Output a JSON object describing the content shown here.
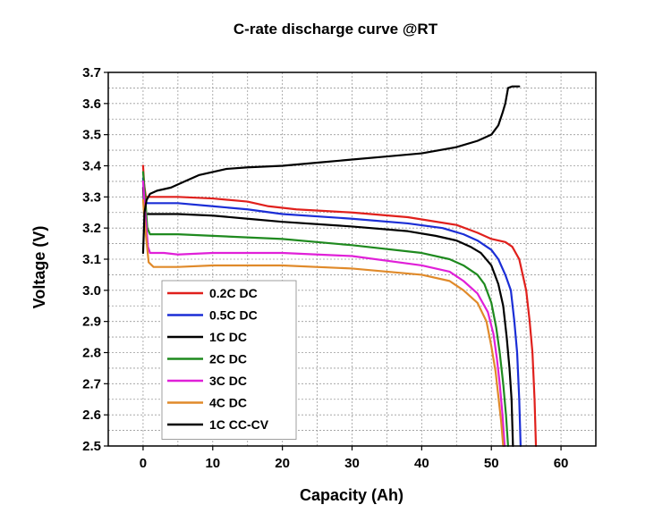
{
  "chart_data": {
    "type": "line",
    "title": "C-rate discharge curve @RT",
    "xlabel": "Capacity (Ah)",
    "ylabel": "Voltage (V)",
    "xlim": [
      -5,
      65
    ],
    "ylim": [
      2.5,
      3.7
    ],
    "xticks": [
      0,
      10,
      20,
      30,
      40,
      50,
      60
    ],
    "yticks": [
      2.5,
      2.6,
      2.7,
      2.8,
      2.9,
      3.0,
      3.1,
      3.2,
      3.3,
      3.4,
      3.5,
      3.6,
      3.7
    ],
    "x_tick_labels": [
      "0",
      "10",
      "20",
      "30",
      "40",
      "50",
      "60"
    ],
    "y_tick_labels": [
      "2.5",
      "2.6",
      "2.7",
      "2.8",
      "2.9",
      "3.0",
      "3.1",
      "3.2",
      "3.3",
      "3.4",
      "3.5",
      "3.6",
      "3.7"
    ],
    "grid": true,
    "legend_position": "bottom-left",
    "series": [
      {
        "name": "0.2C DC",
        "color": "#e0201c",
        "points": [
          [
            0,
            3.4
          ],
          [
            0.15,
            3.34
          ],
          [
            0.4,
            3.3
          ],
          [
            2,
            3.3
          ],
          [
            5,
            3.3
          ],
          [
            10,
            3.295
          ],
          [
            15,
            3.285
          ],
          [
            18,
            3.27
          ],
          [
            22,
            3.26
          ],
          [
            30,
            3.25
          ],
          [
            38,
            3.235
          ],
          [
            45,
            3.21
          ],
          [
            48,
            3.185
          ],
          [
            50,
            3.165
          ],
          [
            52,
            3.155
          ],
          [
            53,
            3.14
          ],
          [
            54,
            3.1
          ],
          [
            55,
            3.0
          ],
          [
            55.5,
            2.9
          ],
          [
            55.9,
            2.8
          ],
          [
            56.2,
            2.65
          ],
          [
            56.4,
            2.5
          ]
        ]
      },
      {
        "name": "0.5C DC",
        "color": "#1b2ed6",
        "points": [
          [
            0,
            3.36
          ],
          [
            0.15,
            3.3
          ],
          [
            0.5,
            3.28
          ],
          [
            2,
            3.28
          ],
          [
            5,
            3.28
          ],
          [
            10,
            3.27
          ],
          [
            15,
            3.26
          ],
          [
            20,
            3.245
          ],
          [
            30,
            3.23
          ],
          [
            38,
            3.215
          ],
          [
            43,
            3.2
          ],
          [
            46,
            3.18
          ],
          [
            48,
            3.16
          ],
          [
            50,
            3.13
          ],
          [
            51,
            3.1
          ],
          [
            52,
            3.05
          ],
          [
            52.8,
            3.0
          ],
          [
            53.3,
            2.9
          ],
          [
            53.7,
            2.8
          ],
          [
            54.0,
            2.65
          ],
          [
            54.2,
            2.5
          ]
        ]
      },
      {
        "name": "1C DC",
        "color": "#000000",
        "points": [
          [
            0,
            3.33
          ],
          [
            0.15,
            3.27
          ],
          [
            0.5,
            3.245
          ],
          [
            5,
            3.245
          ],
          [
            10,
            3.24
          ],
          [
            15,
            3.23
          ],
          [
            20,
            3.22
          ],
          [
            30,
            3.205
          ],
          [
            38,
            3.19
          ],
          [
            42,
            3.175
          ],
          [
            45,
            3.16
          ],
          [
            47,
            3.14
          ],
          [
            48.5,
            3.12
          ],
          [
            50,
            3.08
          ],
          [
            51,
            3.02
          ],
          [
            51.7,
            2.95
          ],
          [
            52.2,
            2.85
          ],
          [
            52.6,
            2.75
          ],
          [
            52.9,
            2.65
          ],
          [
            53.1,
            2.5
          ]
        ]
      },
      {
        "name": "2C DC",
        "color": "#1f8a1f",
        "points": [
          [
            0,
            3.38
          ],
          [
            0.3,
            3.3
          ],
          [
            0.6,
            3.2
          ],
          [
            1,
            3.18
          ],
          [
            5,
            3.18
          ],
          [
            10,
            3.175
          ],
          [
            20,
            3.165
          ],
          [
            30,
            3.145
          ],
          [
            40,
            3.12
          ],
          [
            44,
            3.1
          ],
          [
            46,
            3.08
          ],
          [
            48,
            3.05
          ],
          [
            49,
            3.02
          ],
          [
            50,
            2.96
          ],
          [
            50.7,
            2.88
          ],
          [
            51.2,
            2.8
          ],
          [
            51.7,
            2.7
          ],
          [
            52.1,
            2.6
          ],
          [
            52.4,
            2.5
          ]
        ]
      },
      {
        "name": "3C DC",
        "color": "#e020d8",
        "points": [
          [
            0,
            3.35
          ],
          [
            0.3,
            3.25
          ],
          [
            0.7,
            3.14
          ],
          [
            1,
            3.12
          ],
          [
            3,
            3.12
          ],
          [
            5,
            3.115
          ],
          [
            10,
            3.12
          ],
          [
            20,
            3.12
          ],
          [
            30,
            3.11
          ],
          [
            40,
            3.08
          ],
          [
            44,
            3.06
          ],
          [
            46,
            3.03
          ],
          [
            48,
            2.99
          ],
          [
            49.5,
            2.93
          ],
          [
            50.3,
            2.86
          ],
          [
            50.8,
            2.78
          ],
          [
            51.2,
            2.7
          ],
          [
            51.6,
            2.6
          ],
          [
            51.9,
            2.5
          ]
        ]
      },
      {
        "name": "4C DC",
        "color": "#e08a2a",
        "points": [
          [
            0,
            3.29
          ],
          [
            0.3,
            3.2
          ],
          [
            0.8,
            3.09
          ],
          [
            1.5,
            3.075
          ],
          [
            5,
            3.075
          ],
          [
            10,
            3.08
          ],
          [
            20,
            3.08
          ],
          [
            30,
            3.07
          ],
          [
            40,
            3.05
          ],
          [
            44,
            3.03
          ],
          [
            46,
            3.0
          ],
          [
            48,
            2.96
          ],
          [
            49.3,
            2.9
          ],
          [
            50.0,
            2.82
          ],
          [
            50.6,
            2.74
          ],
          [
            51.0,
            2.66
          ],
          [
            51.4,
            2.58
          ],
          [
            51.7,
            2.5
          ]
        ]
      },
      {
        "name": "1C CC-CV",
        "color": "#000000",
        "points": [
          [
            0,
            3.12
          ],
          [
            0.2,
            3.25
          ],
          [
            0.5,
            3.29
          ],
          [
            1,
            3.31
          ],
          [
            2,
            3.32
          ],
          [
            4,
            3.33
          ],
          [
            6,
            3.35
          ],
          [
            8,
            3.37
          ],
          [
            10,
            3.38
          ],
          [
            12,
            3.39
          ],
          [
            15,
            3.395
          ],
          [
            20,
            3.4
          ],
          [
            25,
            3.41
          ],
          [
            30,
            3.42
          ],
          [
            35,
            3.43
          ],
          [
            40,
            3.44
          ],
          [
            45,
            3.46
          ],
          [
            48,
            3.48
          ],
          [
            50,
            3.5
          ],
          [
            51,
            3.53
          ],
          [
            51.6,
            3.57
          ],
          [
            52,
            3.6
          ],
          [
            52.4,
            3.65
          ],
          [
            53.0,
            3.655
          ],
          [
            54.0,
            3.655
          ]
        ]
      }
    ]
  }
}
